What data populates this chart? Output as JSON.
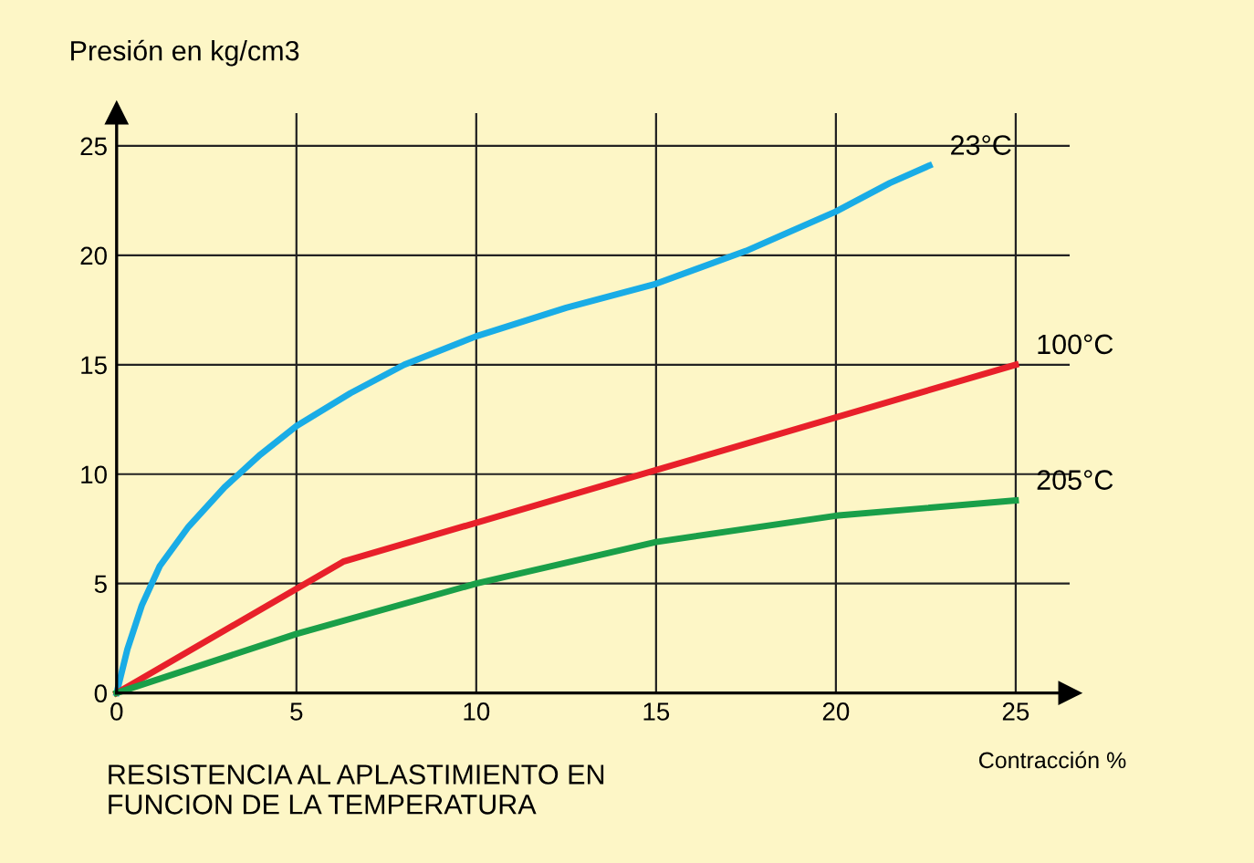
{
  "chart_data": {
    "type": "line",
    "ylabel": "Presión en kg/cm3",
    "xlabel": "Contracción %",
    "annotations": [
      "RESISTENCIA AL APLASTIMIENTO EN\nFUNCION DE LA TEMPERATURA"
    ],
    "xlim": [
      0,
      26.5
    ],
    "ylim": [
      0,
      26.5
    ],
    "xticks": [
      0,
      5,
      10,
      15,
      20,
      25
    ],
    "yticks": [
      0,
      5,
      10,
      15,
      20,
      25
    ],
    "grid": true,
    "legend": false,
    "marker": "none",
    "line_style": "solid",
    "series": [
      {
        "name": "23°C",
        "color": "#19ace6",
        "x": [
          0,
          0.3,
          0.7,
          1.2,
          2,
          3,
          4,
          5,
          6.5,
          8,
          10,
          12.5,
          15,
          17.5,
          20,
          21.5,
          22.6
        ],
        "values": [
          0,
          2,
          4,
          5.8,
          7.6,
          9.4,
          10.9,
          12.2,
          13.7,
          15,
          16.3,
          17.6,
          18.7,
          20.2,
          22,
          23.3,
          24.1
        ]
      },
      {
        "name": "100°C",
        "color": "#e8202a",
        "x": [
          0,
          6.3,
          25
        ],
        "values": [
          0,
          6,
          15
        ]
      },
      {
        "name": "205°C",
        "color": "#1a9f49",
        "x": [
          0,
          5,
          10,
          15,
          20,
          25
        ],
        "values": [
          0,
          2.7,
          5,
          6.9,
          8.1,
          8.8
        ]
      }
    ]
  }
}
